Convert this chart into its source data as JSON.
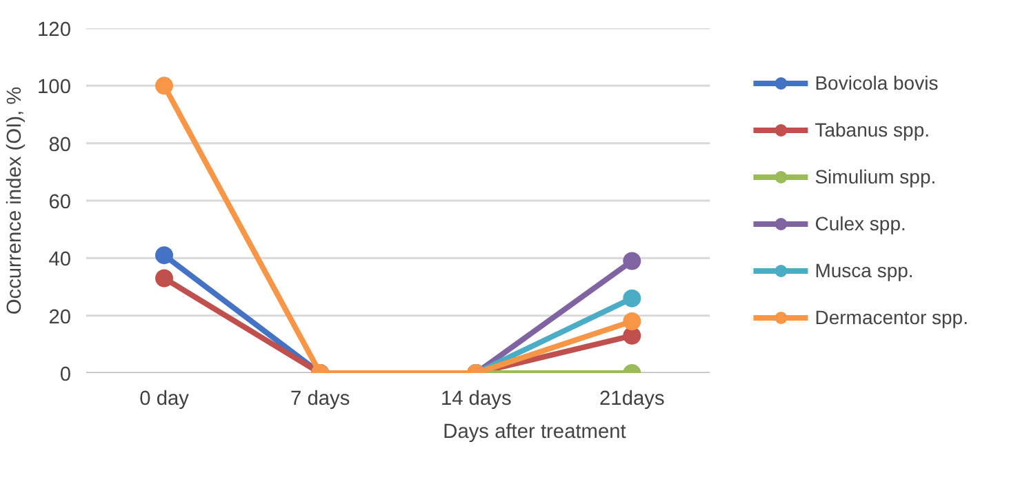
{
  "chart_data": {
    "type": "line",
    "xlabel": "Days after treatment",
    "ylabel": "Occurrence index (OI), %",
    "categories": [
      "0 day",
      "7 days",
      "14 days",
      "21days"
    ],
    "ylim": [
      0,
      120
    ],
    "yticks": [
      0,
      20,
      40,
      60,
      80,
      100,
      120
    ],
    "grid": "y",
    "legend": "right",
    "marker": "circle",
    "line_style": "solid",
    "series": [
      {
        "name": "Bovicola bovis",
        "color": "#4472c4",
        "values": [
          41,
          0,
          0,
          null
        ]
      },
      {
        "name": "Tabanus spp.",
        "color": "#c0504d",
        "values": [
          33,
          0,
          0,
          13
        ]
      },
      {
        "name": "Simulium spp.",
        "color": "#9bbb59",
        "values": [
          null,
          0,
          0,
          0
        ]
      },
      {
        "name": "Culex spp.",
        "color": "#8064a2",
        "values": [
          null,
          0,
          0,
          39
        ]
      },
      {
        "name": "Musca spp.",
        "color": "#4bacc6",
        "values": [
          null,
          0,
          0,
          26
        ]
      },
      {
        "name": "Dermacentor spp.",
        "color": "#f79646",
        "values": [
          100,
          0,
          0,
          18
        ]
      }
    ]
  }
}
